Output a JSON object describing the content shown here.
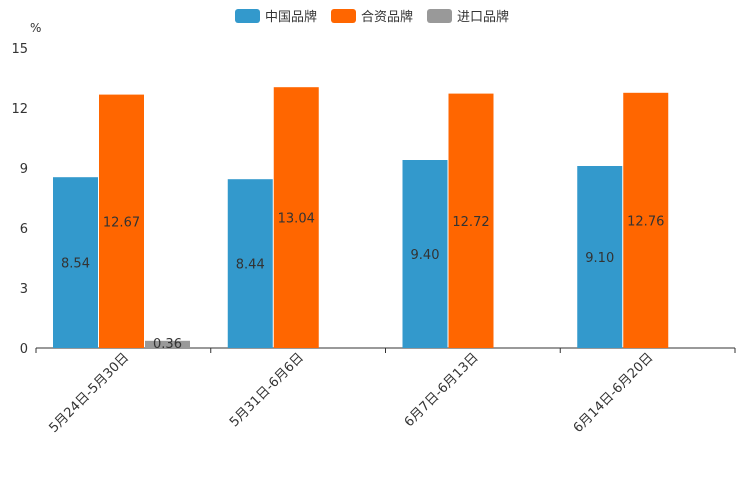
{
  "chart_data": {
    "type": "bar",
    "unit": "%",
    "categories": [
      "5月24日-5月30日",
      "5月31日-6月6日",
      "6月7日-6月13日",
      "6月14日-6月20日"
    ],
    "series": [
      {
        "name": "中国品牌",
        "color": "#3399cc",
        "values": [
          8.54,
          8.44,
          9.4,
          9.1
        ],
        "labels": [
          "8.54",
          "8.44",
          "9.40",
          "9.10"
        ]
      },
      {
        "name": "合资品牌",
        "color": "#ff6600",
        "values": [
          12.67,
          13.04,
          12.72,
          12.76
        ],
        "labels": [
          "12.67",
          "13.04",
          "12.72",
          "12.76"
        ]
      },
      {
        "name": "进口品牌",
        "color": "#999999",
        "values": [
          0.36,
          null,
          null,
          null
        ],
        "labels": [
          "0.36",
          "",
          "",
          ""
        ]
      }
    ],
    "yticks": [
      "0",
      "3",
      "6",
      "9",
      "12",
      "15"
    ],
    "ylim": [
      0,
      15
    ],
    "legend_position": "top-center"
  }
}
